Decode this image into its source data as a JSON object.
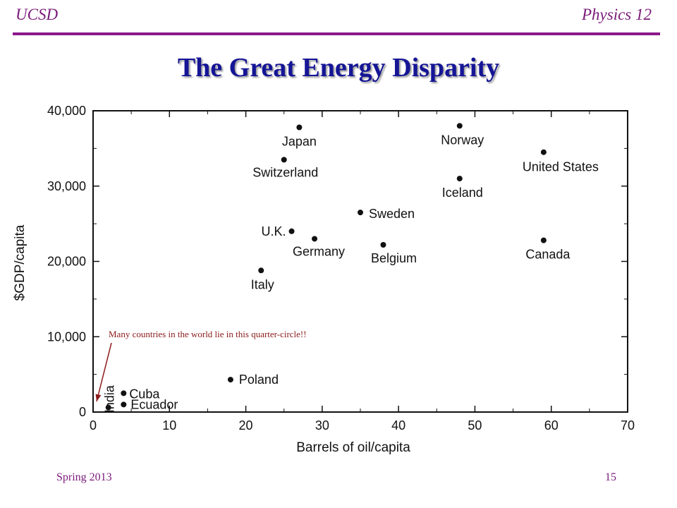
{
  "header": {
    "left": "UCSD",
    "right": "Physics 12"
  },
  "slide_title": "The Great Energy Disparity",
  "annotation": "Many countries in the world lie in this quarter-circle!!",
  "footer": {
    "date": "Spring 2013",
    "page": "15"
  },
  "colors": {
    "header_text": "#7a1a7a",
    "rule": "#8b1a8b",
    "title": "#151596",
    "annotation": "#8b1a1a"
  },
  "chart_data": {
    "type": "scatter",
    "xlabel": "Barrels of oil/capita",
    "ylabel": "$GDP/capita",
    "xlim": [
      0,
      70
    ],
    "ylim": [
      0,
      40000
    ],
    "xticks": [
      0,
      10,
      20,
      30,
      40,
      50,
      60,
      70
    ],
    "yticks": [
      0,
      10000,
      20000,
      30000,
      40000
    ],
    "ytick_labels": [
      "0",
      "10,000",
      "20,000",
      "30,000",
      "40,000"
    ],
    "grid": false,
    "points": [
      {
        "label": "Japan",
        "x": 27,
        "y": 37800
      },
      {
        "label": "Norway",
        "x": 48,
        "y": 38000
      },
      {
        "label": "Switzerland",
        "x": 25,
        "y": 33500
      },
      {
        "label": "United States",
        "x": 59,
        "y": 34500
      },
      {
        "label": "Iceland",
        "x": 48,
        "y": 31000
      },
      {
        "label": "Sweden",
        "x": 35,
        "y": 26500
      },
      {
        "label": "U.K.",
        "x": 26,
        "y": 24000
      },
      {
        "label": "Germany",
        "x": 29,
        "y": 23000
      },
      {
        "label": "Belgium",
        "x": 38,
        "y": 22200
      },
      {
        "label": "Canada",
        "x": 59,
        "y": 22800
      },
      {
        "label": "Italy",
        "x": 22,
        "y": 18800
      },
      {
        "label": "Poland",
        "x": 18,
        "y": 4300
      },
      {
        "label": "Cuba",
        "x": 4,
        "y": 2500
      },
      {
        "label": "Ecuador",
        "x": 4,
        "y": 1000
      },
      {
        "label": "India",
        "x": 2,
        "y": 600
      }
    ]
  }
}
